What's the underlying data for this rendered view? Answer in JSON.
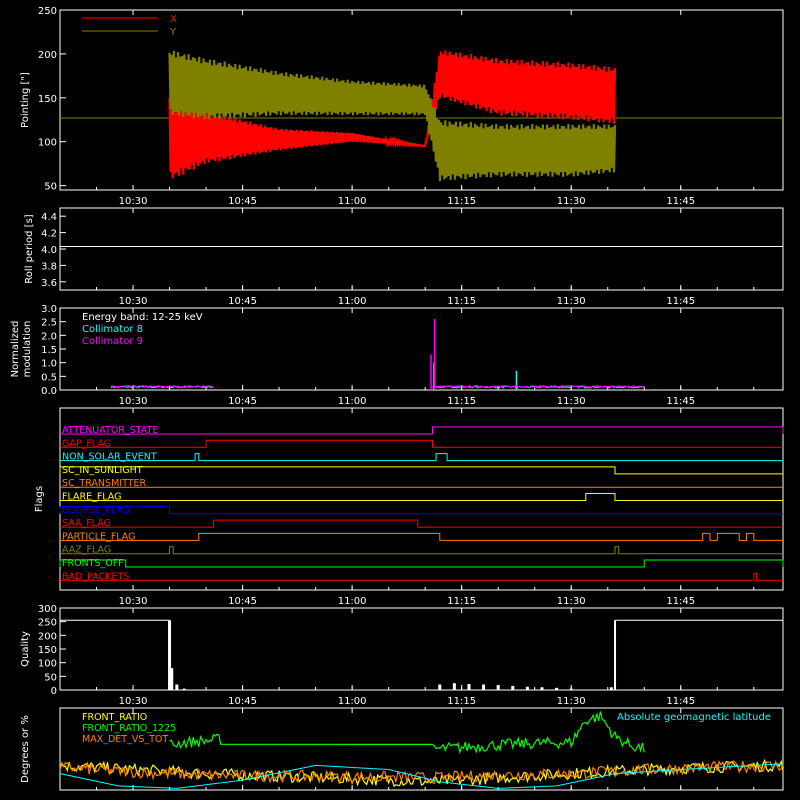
{
  "colors": {
    "background": "#000000",
    "axes": "#ffffff",
    "x_series": "#ff0000",
    "y_series": "#808000",
    "roll": "#ffffff",
    "energy_text": "#ffffff",
    "collimator8": "#00ffff",
    "collimator9": "#ff00ff",
    "front_ratio": "#ffff00",
    "front_ratio_1225": "#00ff00",
    "max_det": "#ff8000",
    "geomag": "#00ffff"
  },
  "time_axis": {
    "range": [
      "10:20",
      "11:59"
    ],
    "tick_labels": [
      "10:30",
      "10:45",
      "11:00",
      "11:15",
      "11:30",
      "11:45"
    ]
  },
  "chart_data": [
    {
      "id": "pointing",
      "type": "line",
      "xlabel": "",
      "ylabel": "Pointing [\"]",
      "ylim": [
        45,
        250
      ],
      "yticks": [
        50,
        100,
        150,
        200,
        250
      ],
      "legend_position": "top-left",
      "series": [
        {
          "name": "X",
          "color": "#ff0000",
          "x": [
            "10:35",
            "10:40",
            "10:50",
            "11:00",
            "11:10",
            "11:12",
            "11:20",
            "11:30",
            "11:36"
          ],
          "upper": [
            155,
            135,
            115,
            110,
            95,
            205,
            195,
            190,
            185
          ],
          "lower": [
            55,
            75,
            90,
            100,
            95,
            150,
            130,
            125,
            120
          ]
        },
        {
          "name": "Y",
          "color": "#808000",
          "x": [
            "10:35",
            "10:40",
            "10:50",
            "11:00",
            "11:10",
            "11:12",
            "11:20",
            "11:30",
            "11:36"
          ],
          "upper": [
            205,
            195,
            180,
            170,
            165,
            125,
            120,
            120,
            120
          ],
          "lower": [
            130,
            125,
            130,
            130,
            130,
            55,
            60,
            60,
            65
          ]
        }
      ],
      "reference_level": 127,
      "active_range": [
        "10:35",
        "11:36"
      ]
    },
    {
      "id": "roll",
      "type": "line",
      "xlabel": "",
      "ylabel": "Roll period [s]",
      "ylim": [
        3.5,
        4.5
      ],
      "yticks": [
        3.6,
        3.8,
        4.0,
        4.2,
        4.4
      ],
      "series": [
        {
          "name": "",
          "value": 4.03
        }
      ]
    },
    {
      "id": "modulation",
      "type": "line",
      "xlabel": "",
      "ylabel_lines": [
        "Normalized",
        "modulation"
      ],
      "ylim": [
        0,
        3.0
      ],
      "yticks": [
        0.0,
        0.5,
        1.0,
        1.5,
        2.0,
        2.5,
        3.0
      ],
      "legend_title": "Energy band: 12-25 keV",
      "series": [
        {
          "name": "Collimator 8",
          "color": "#00ffff",
          "segments": [
            [
              "10:27",
              "10:41"
            ],
            [
              "11:11",
              "11:40"
            ]
          ],
          "base": 0.08,
          "spikes": [
            {
              "x": "11:11.2",
              "y": 1.0
            },
            {
              "x": "11:22.5",
              "y": 0.7
            }
          ]
        },
        {
          "name": "Collimator 9",
          "color": "#ff00ff",
          "segments": [
            [
              "10:27",
              "10:41"
            ],
            [
              "11:11",
              "11:40"
            ]
          ],
          "base": 0.1,
          "spikes": [
            {
              "x": "11:11.3",
              "y": 2.6
            },
            {
              "x": "11:10.8",
              "y": 1.3
            }
          ]
        }
      ]
    },
    {
      "id": "flags",
      "type": "line",
      "ylabel": "Flags",
      "flags": [
        {
          "name": "ATTENUATOR_STATE",
          "color": "#ff00ff",
          "high": [
            [
              "11:11",
              "11:59"
            ]
          ]
        },
        {
          "name": "GAP_FLAG",
          "color": "#ff0000",
          "high": [
            [
              "10:40",
              "11:11"
            ]
          ]
        },
        {
          "name": "NON_SOLAR_EVENT",
          "color": "#00ffff",
          "high": [
            [
              "10:38.5",
              "10:39"
            ],
            [
              "11:11.5",
              "11:13"
            ]
          ]
        },
        {
          "name": "SC_IN_SUNLIGHT",
          "color": "#ffff00",
          "high": [
            [
              "10:20",
              "11:36"
            ]
          ]
        },
        {
          "name": "SC_TRANSMITTER",
          "color": "#ff8000",
          "high": []
        },
        {
          "name": "FLARE_FLAG",
          "color": "#ffff00",
          "high": [
            [
              "11:32",
              "11:36"
            ]
          ]
        },
        {
          "name": "ECLIPSE_FLAG",
          "color": "#0000ff",
          "high": [
            [
              "10:20",
              "10:35"
            ]
          ]
        },
        {
          "name": "SAA_FLAG",
          "color": "#ff0000",
          "high": [
            [
              "10:41",
              "11:09"
            ]
          ]
        },
        {
          "name": "PARTICLE_FLAG",
          "color": "#ff8000",
          "high": [
            [
              "10:39",
              "11:12"
            ],
            [
              "11:48",
              "11:49"
            ],
            [
              "11:50",
              "11:53"
            ],
            [
              "11:54",
              "11:55"
            ]
          ]
        },
        {
          "name": "AAZ_FLAG",
          "color": "#808000",
          "high": [
            [
              "10:35",
              "10:35.5"
            ],
            [
              "11:36",
              "11:36.5"
            ]
          ]
        },
        {
          "name": "FRONTS_OFF",
          "color": "#00ff00",
          "high": [
            [
              "10:20",
              "10:29"
            ],
            [
              "11:40",
              "11:59"
            ]
          ]
        },
        {
          "name": "BAD_PACKETS",
          "color": "#ff0000",
          "high": [
            [
              "11:55",
              "11:55.4"
            ]
          ]
        }
      ]
    },
    {
      "id": "quality",
      "type": "bar",
      "ylabel": "Quality",
      "ylim": [
        0,
        300
      ],
      "yticks": [
        0,
        50,
        100,
        150,
        200,
        250,
        300
      ],
      "series": [
        {
          "name": "",
          "color": "#ffffff",
          "x": [
            "10:20",
            "10:35",
            "10:35.3",
            "10:36",
            "10:37",
            "11:12",
            "11:14",
            "11:16",
            "11:18",
            "11:20",
            "11:22",
            "11:24",
            "11:26",
            "11:28",
            "11:30",
            "11:35.5",
            "11:36",
            "11:59"
          ],
          "values": [
            255,
            255,
            80,
            20,
            5,
            20,
            25,
            22,
            20,
            18,
            15,
            12,
            10,
            8,
            5,
            10,
            255,
            255
          ]
        }
      ]
    },
    {
      "id": "ratios",
      "type": "line",
      "ylabel": "Degrees or %",
      "ylim": [
        0,
        100
      ],
      "series": [
        {
          "name": "FRONT_RATIO",
          "color": "#ffff00",
          "x": [
            "10:20",
            "10:30",
            "10:40",
            "11:11",
            "11:20",
            "11:30",
            "11:40",
            "11:50",
            "11:59"
          ],
          "y": [
            30,
            25,
            20,
            10,
            15,
            20,
            25,
            28,
            30
          ]
        },
        {
          "name": "FRONT_RATIO_1225",
          "color": "#00ff00",
          "x": [
            "10:35",
            "10:37",
            "10:40",
            "10:42",
            "11:11",
            "11:15",
            "11:20",
            "11:25",
            "11:30",
            "11:32",
            "11:34",
            "11:36",
            "11:38",
            "11:40"
          ],
          "y": [
            55,
            58,
            60,
            62,
            50,
            52,
            55,
            57,
            58,
            85,
            90,
            65,
            55,
            50
          ]
        },
        {
          "name": "MAX_DET_VS_TOT",
          "color": "#ff8000",
          "x": [
            "10:20",
            "10:30",
            "10:40",
            "11:11",
            "11:20",
            "11:30",
            "11:40",
            "11:50",
            "11:59"
          ],
          "y": [
            28,
            22,
            18,
            15,
            18,
            20,
            25,
            28,
            30
          ]
        },
        {
          "name": "Absolute geomagnetic latitude",
          "color": "#00ffff",
          "x": [
            "10:20",
            "10:28",
            "10:36",
            "10:45",
            "10:55",
            "11:05",
            "11:12",
            "11:20",
            "11:28",
            "11:36",
            "11:45",
            "11:55",
            "11:59"
          ],
          "y": [
            20,
            5,
            2,
            12,
            30,
            25,
            10,
            2,
            5,
            20,
            25,
            30,
            32
          ]
        }
      ]
    }
  ]
}
